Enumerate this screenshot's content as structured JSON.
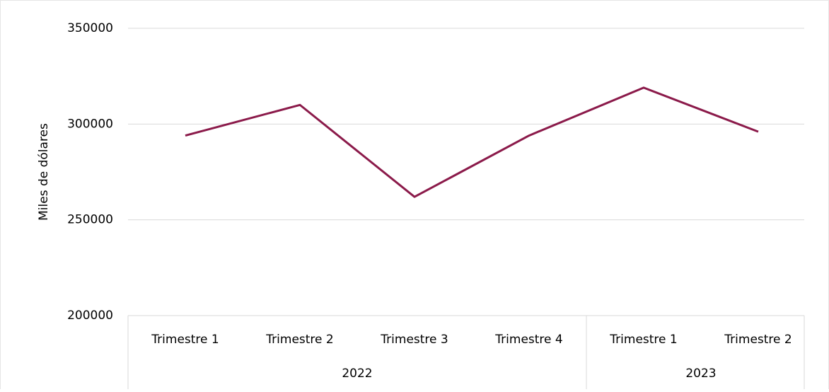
{
  "chart_data": {
    "type": "line",
    "y_axis_label": "Miles de dólares",
    "categories": [
      "Trimestre 1",
      "Trimestre 2",
      "Trimestre 3",
      "Trimestre 4",
      "Trimestre 1",
      "Trimestre 2"
    ],
    "x_groups": [
      {
        "label": "2022",
        "span": 4
      },
      {
        "label": "2023",
        "span": 2
      }
    ],
    "series": [
      {
        "color": "#8b1a4a",
        "values": [
          294000,
          310000,
          262000,
          294000,
          319000,
          296000
        ]
      }
    ],
    "ylim": [
      200000,
      350000
    ],
    "yticks": [
      200000,
      250000,
      300000,
      350000
    ],
    "grid": true
  }
}
